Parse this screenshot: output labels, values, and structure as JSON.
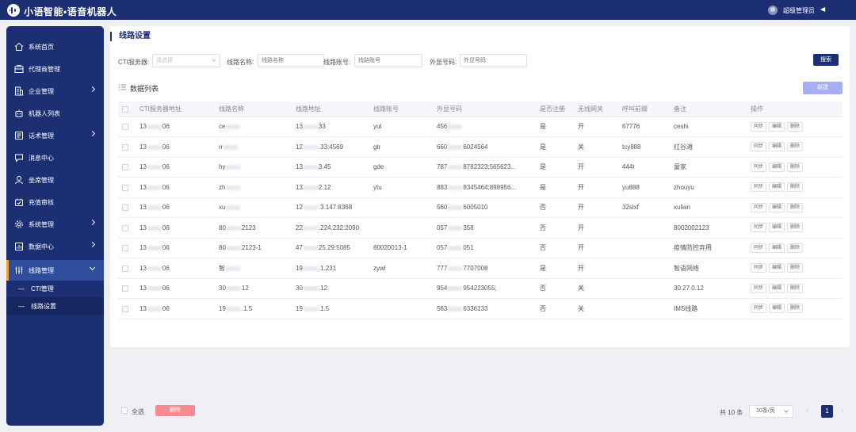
{
  "app": {
    "title": "小语智能•语音机器人",
    "user": "超级管理员",
    "user_caret": "◀"
  },
  "sidebar": {
    "items": [
      {
        "label": "系统首页",
        "icon": "home-icon"
      },
      {
        "label": "代理商管理",
        "icon": "agent-icon"
      },
      {
        "label": "企业管理",
        "icon": "enterprise-icon"
      },
      {
        "label": "机器人列表",
        "icon": "robot-icon"
      },
      {
        "label": "话术管理",
        "icon": "script-icon"
      },
      {
        "label": "消息中心",
        "icon": "message-icon"
      },
      {
        "label": "坐席管理",
        "icon": "seat-icon"
      },
      {
        "label": "充值审核",
        "icon": "recharge-icon"
      },
      {
        "label": "系统管理",
        "icon": "gear-icon"
      },
      {
        "label": "数据中心",
        "icon": "data-icon"
      },
      {
        "label": "线路管理",
        "icon": "line-icon"
      }
    ],
    "sub_items": [
      {
        "label": "CTI管理"
      },
      {
        "label": "线路设置"
      }
    ],
    "sub_dash": "—"
  },
  "main": {
    "title": "线路设置",
    "filters": {
      "cti_label": "CTI服务器:",
      "cti_placeholder": "请选择",
      "name_label": "线路名称:",
      "name_placeholder": "线路名称",
      "account_label": "线路账号:",
      "account_placeholder": "线路账号",
      "display_label": "外显号码:",
      "display_placeholder": "外显号码",
      "search_label": "搜索"
    },
    "list_title": "数据列表",
    "new_label": "新建",
    "table": {
      "headers": [
        "CTI服务器地址",
        "线路名称",
        "线路地址",
        "线路账号",
        "外显号码",
        "是否注册",
        "无线网关",
        "呼叫前缀",
        "备注",
        "操作"
      ],
      "rows": [
        {
          "cti_a": "13",
          "cti_b": "06",
          "name_a": "ce",
          "name_b": "",
          "addr_a": "13",
          "addr_b": "33",
          "account": "yul",
          "disp_a": "456",
          "disp_b": "",
          "registered": "是",
          "gateway": "开",
          "prefix": "67776",
          "remark": "ceshi"
        },
        {
          "cti_a": "13",
          "cti_b": "06",
          "name_a": "rr",
          "name_b": "",
          "addr_a": "12",
          "addr_b": ".33:4569",
          "account": "gtr",
          "disp_a": "660",
          "disp_b": "6024564",
          "registered": "是",
          "gateway": "关",
          "prefix": "tcy888",
          "remark": "红谷滩"
        },
        {
          "cti_a": "13",
          "cti_b": "06",
          "name_a": "hy",
          "name_b": "",
          "addr_a": "13",
          "addr_b": "3.45",
          "account": "gde",
          "disp_a": "787",
          "disp_b": "8782323;565623...",
          "registered": "是",
          "gateway": "开",
          "prefix": "444t",
          "remark": "童家"
        },
        {
          "cti_a": "13",
          "cti_b": "06",
          "name_a": "zh",
          "name_b": "",
          "addr_a": "13",
          "addr_b": "2.12",
          "account": "ytu",
          "disp_a": "883",
          "disp_b": "8345464;898956...",
          "registered": "是",
          "gateway": "开",
          "prefix": "yu888",
          "remark": "zhouyu"
        },
        {
          "cti_a": "13",
          "cti_b": "06",
          "name_a": "xu",
          "name_b": "",
          "addr_a": "12",
          "addr_b": ".3.147:8368",
          "account": "",
          "disp_a": "560",
          "disp_b": "6005010",
          "registered": "否",
          "gateway": "开",
          "prefix": "32slxf",
          "remark": "xulian"
        },
        {
          "cti_a": "13",
          "cti_b": "06",
          "name_a": "80",
          "name_b": "2123",
          "addr_a": "22",
          "addr_b": ".224.232:2090",
          "account": "",
          "disp_a": "057",
          "disp_b": "358",
          "registered": "否",
          "gateway": "开",
          "prefix": "",
          "remark": "8002002123"
        },
        {
          "cti_a": "13",
          "cti_b": "06",
          "name_a": "80",
          "name_b": "2123-1",
          "addr_a": "47",
          "addr_b": "25.29:5085",
          "account": "80020013-1",
          "disp_a": "057",
          "disp_b": "051",
          "registered": "否",
          "gateway": "开",
          "prefix": "",
          "remark": "疫情防控弃用"
        },
        {
          "cti_a": "13",
          "cti_b": "06",
          "name_a": "智",
          "name_b": "",
          "addr_a": "19",
          "addr_b": ".1.231",
          "account": "zywl",
          "disp_a": "777",
          "disp_b": "7707008",
          "registered": "是",
          "gateway": "开",
          "prefix": "",
          "remark": "智语网络"
        },
        {
          "cti_a": "13",
          "cti_b": "06",
          "name_a": "30",
          "name_b": "12",
          "addr_a": "30",
          "addr_b": ".12",
          "account": "",
          "disp_a": "954",
          "disp_b": "954223055;",
          "registered": "否",
          "gateway": "关",
          "prefix": "",
          "remark": "30.27.0.12"
        },
        {
          "cti_a": "13",
          "cti_b": "06",
          "name_a": "19",
          "name_b": ".1.5",
          "addr_a": "19",
          "addr_b": ".1.5",
          "account": "",
          "disp_a": "563",
          "disp_b": "6336133",
          "registered": "否",
          "gateway": "关",
          "prefix": "",
          "remark": "IMS线路"
        }
      ],
      "op_labels": {
        "sync": "同步",
        "edit": "编辑",
        "delete": "删除"
      }
    }
  },
  "footer": {
    "select_all": "全选",
    "delete_label": "删除",
    "total": "共 10 条",
    "page_size": "10条/页",
    "current_page": "1",
    "prev": "‹",
    "next": "›"
  },
  "colors": {
    "nav_bg": "#1c2f73",
    "accent": "#f0a732",
    "new_button": "#a7aef5",
    "delete_button": "#f68a8e"
  }
}
